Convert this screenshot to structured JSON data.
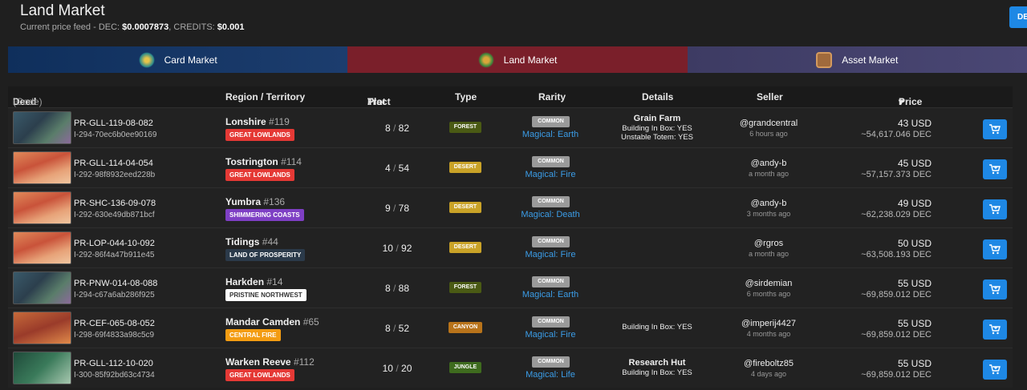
{
  "header": {
    "title": "Land Market",
    "feed_prefix": "Current price feed - DEC: ",
    "dec_price": "$0.0007873",
    "credits_prefix": ", CREDITS: ",
    "credits_price": "$0.001",
    "corner_button": "DE"
  },
  "tabs": [
    {
      "label": "Card Market",
      "icon": "card-market-icon"
    },
    {
      "label": "Land Market",
      "icon": "land-market-icon"
    },
    {
      "label": "Asset Market",
      "icon": "asset-market-icon"
    }
  ],
  "columns": {
    "deed": "Deed",
    "code": "(Code)",
    "region": "Region / Territory",
    "tract": "Tract",
    "plot": "Plot",
    "type": "Type",
    "rarity": "Rarity",
    "details": "Details",
    "seller": "Seller",
    "price": "Price"
  },
  "colors": {
    "accent": "#1e88e5",
    "magical": "#3b9de8",
    "great_lowlands": "#e53935",
    "shimmering_coasts": "#7e3fc4",
    "land_of_prosperity": "#2b3a4a",
    "pristine_northwest": "#ffffff",
    "central_fire": "#f39c12",
    "forest": "#4a5a14",
    "desert": "#c9a227",
    "canyon": "#b8731a",
    "jungle": "#3e6b1e"
  },
  "rows": [
    {
      "deed": "PR-GLL-119-08-082",
      "code": "I-294-70ec6b0ee90169",
      "region": "Lonshire",
      "region_num": "#119",
      "territory": "GREAT LOWLANDS",
      "tract": "8",
      "plot": "82",
      "type": "FOREST",
      "rarity": "COMMON",
      "magic": "Magical: Earth",
      "details_title": "Grain Farm",
      "details_lines": [
        "Building In Box: YES",
        "Unstable Totem: YES"
      ],
      "seller": "@grandcentral",
      "time": "6 hours ago",
      "usd": "43 USD",
      "dec": "~54,617.046 DEC"
    },
    {
      "deed": "PR-GLL-114-04-054",
      "code": "I-292-98f8932eed228b",
      "region": "Tostrington",
      "region_num": "#114",
      "territory": "GREAT LOWLANDS",
      "tract": "4",
      "plot": "54",
      "type": "DESERT",
      "rarity": "COMMON",
      "magic": "Magical: Fire",
      "details_title": "",
      "details_lines": [],
      "seller": "@andy-b",
      "time": "a month ago",
      "usd": "45 USD",
      "dec": "~57,157.373 DEC"
    },
    {
      "deed": "PR-SHC-136-09-078",
      "code": "I-292-630e49db871bcf",
      "region": "Yumbra",
      "region_num": "#136",
      "territory": "SHIMMERING COASTS",
      "tract": "9",
      "plot": "78",
      "type": "DESERT",
      "rarity": "COMMON",
      "magic": "Magical: Death",
      "details_title": "",
      "details_lines": [],
      "seller": "@andy-b",
      "time": "3 months ago",
      "usd": "49 USD",
      "dec": "~62,238.029 DEC"
    },
    {
      "deed": "PR-LOP-044-10-092",
      "code": "I-292-86f4a47b911e45",
      "region": "Tidings",
      "region_num": "#44",
      "territory": "LAND OF PROSPERITY",
      "tract": "10",
      "plot": "92",
      "type": "DESERT",
      "rarity": "COMMON",
      "magic": "Magical: Fire",
      "details_title": "",
      "details_lines": [],
      "seller": "@rgros",
      "time": "a month ago",
      "usd": "50 USD",
      "dec": "~63,508.193 DEC"
    },
    {
      "deed": "PR-PNW-014-08-088",
      "code": "I-294-c67a6ab286f925",
      "region": "Harkden",
      "region_num": "#14",
      "territory": "PRISTINE NORTHWEST",
      "tract": "8",
      "plot": "88",
      "type": "FOREST",
      "rarity": "COMMON",
      "magic": "Magical: Earth",
      "details_title": "",
      "details_lines": [],
      "seller": "@sirdemian",
      "time": "6 months ago",
      "usd": "55 USD",
      "dec": "~69,859.012 DEC"
    },
    {
      "deed": "PR-CEF-065-08-052",
      "code": "I-298-69f4833a98c5c9",
      "region": "Mandar Camden",
      "region_num": "#65",
      "territory": "CENTRAL FIRE",
      "tract": "8",
      "plot": "52",
      "type": "CANYON",
      "rarity": "COMMON",
      "magic": "Magical: Fire",
      "details_title": "",
      "details_lines": [
        "Building In Box: YES"
      ],
      "seller": "@imperij4427",
      "time": "4 months ago",
      "usd": "55 USD",
      "dec": "~69,859.012 DEC"
    },
    {
      "deed": "PR-GLL-112-10-020",
      "code": "I-300-85f92bd63c4734",
      "region": "Warken Reeve",
      "region_num": "#112",
      "territory": "GREAT LOWLANDS",
      "tract": "10",
      "plot": "20",
      "type": "JUNGLE",
      "rarity": "COMMON",
      "magic": "Magical: Life",
      "details_title": "Research Hut",
      "details_lines": [
        "Building In Box: YES"
      ],
      "seller": "@fireboltz85",
      "time": "4 days ago",
      "usd": "55 USD",
      "dec": "~69,859.012 DEC"
    }
  ]
}
